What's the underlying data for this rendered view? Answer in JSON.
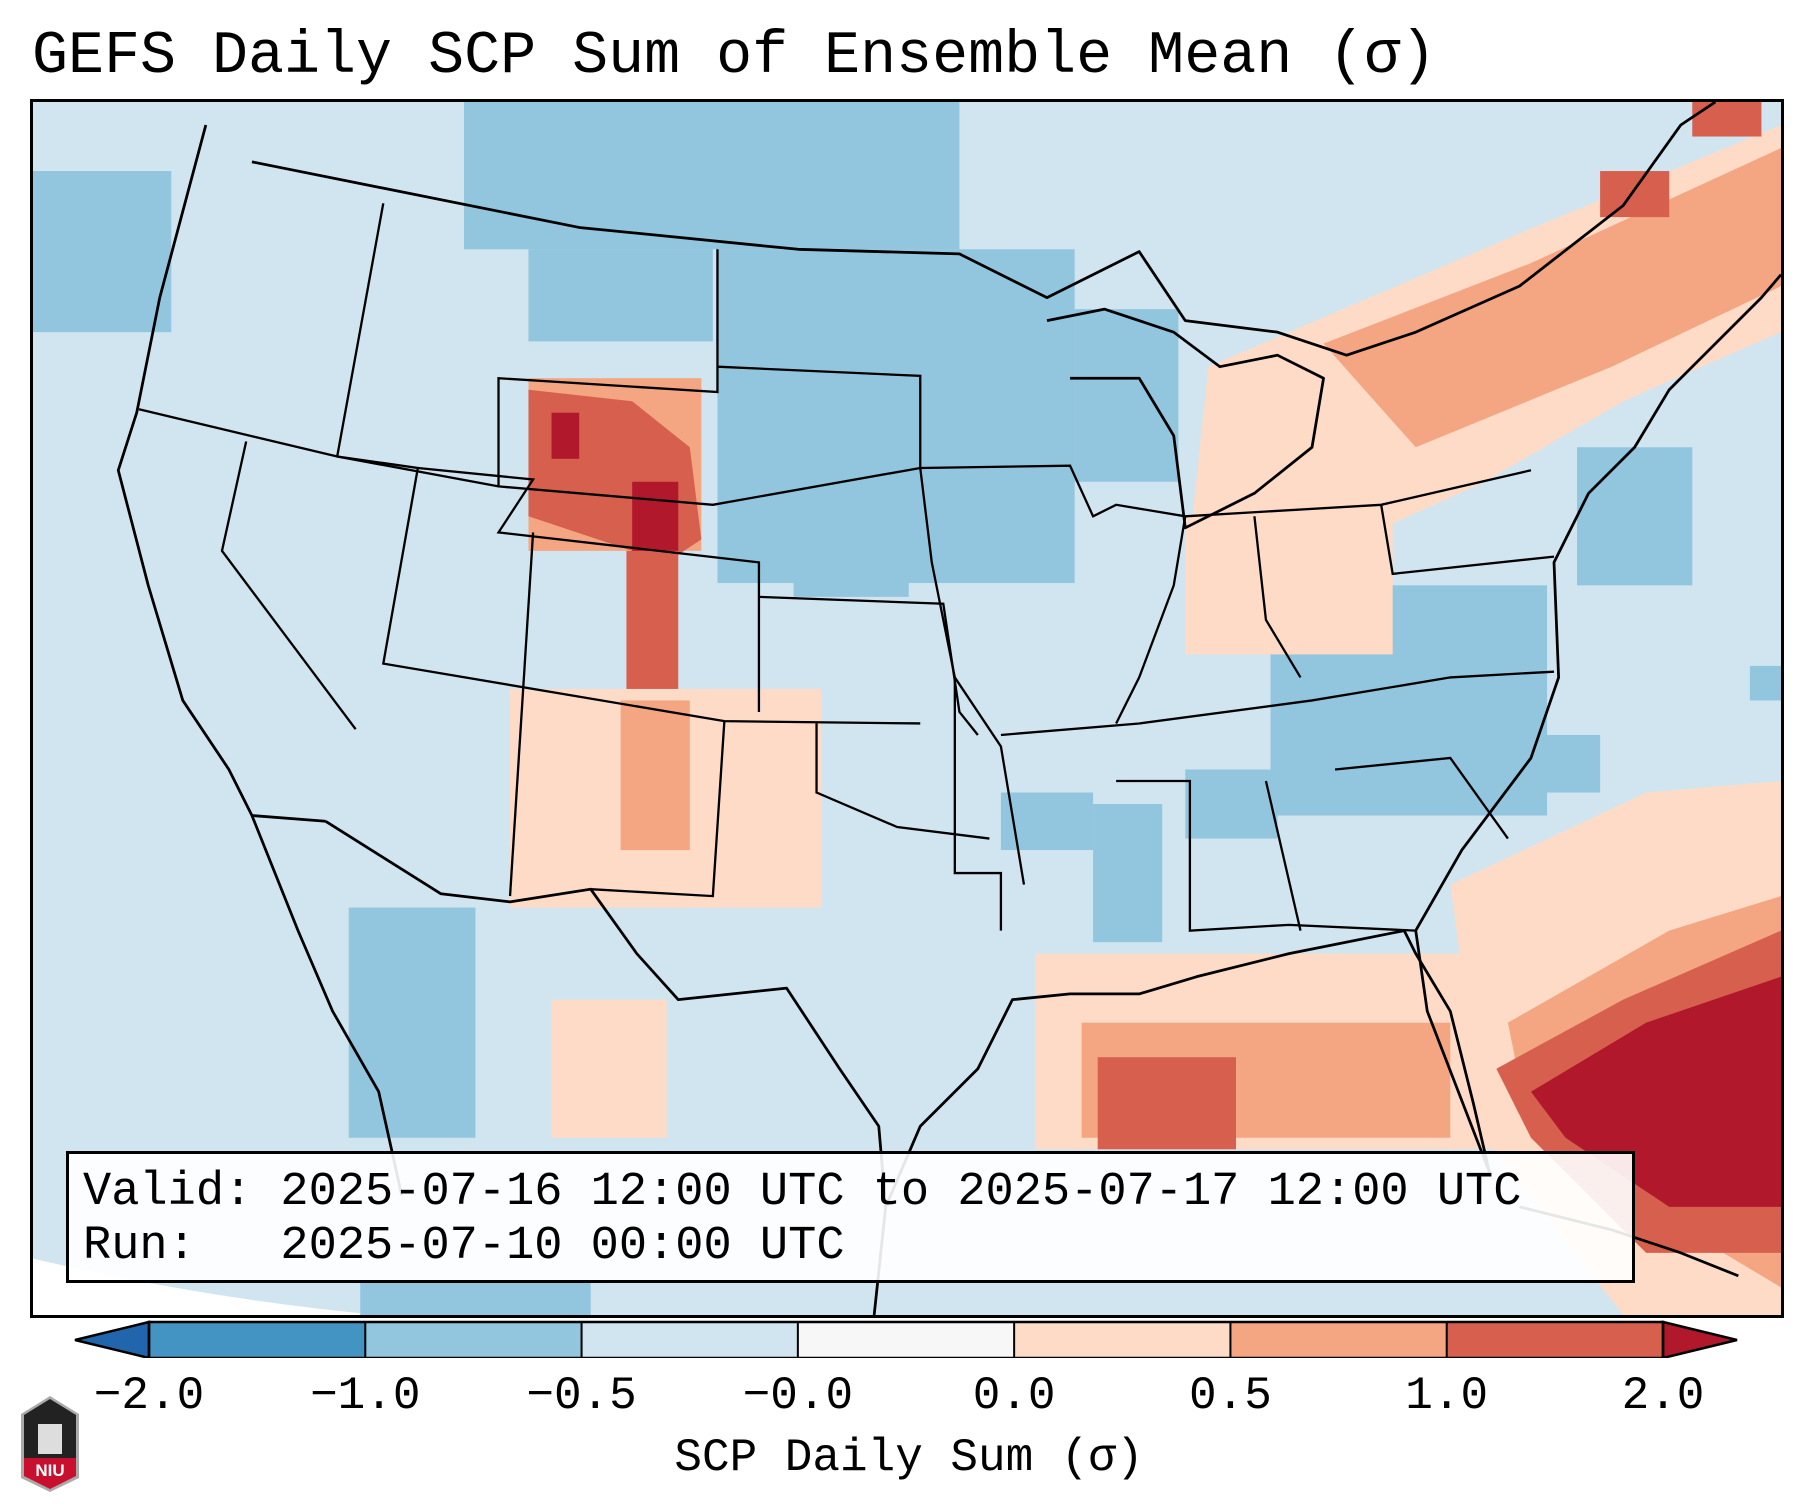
{
  "title": "GEFS Daily SCP Sum of Ensemble Mean (σ)",
  "info": {
    "valid": "Valid: 2025-07-16 12:00 UTC to 2025-07-17 12:00 UTC",
    "run": "Run:   2025-07-10 00:00 UTC"
  },
  "colorbar": {
    "label": "SCP Daily Sum (σ)",
    "ticks": [
      "−2.0",
      "−1.0",
      "−0.5",
      "−0.0",
      "0.0",
      "0.5",
      "1.0",
      "2.0"
    ],
    "colors": [
      "#4393c3",
      "#92c5de",
      "#d1e5f0",
      "#f7f7f7",
      "#fddbc7",
      "#f4a582",
      "#d6604d"
    ],
    "extend_low": "#2166ac",
    "extend_high": "#b2182b"
  },
  "logo": {
    "text": "NIU"
  }
}
